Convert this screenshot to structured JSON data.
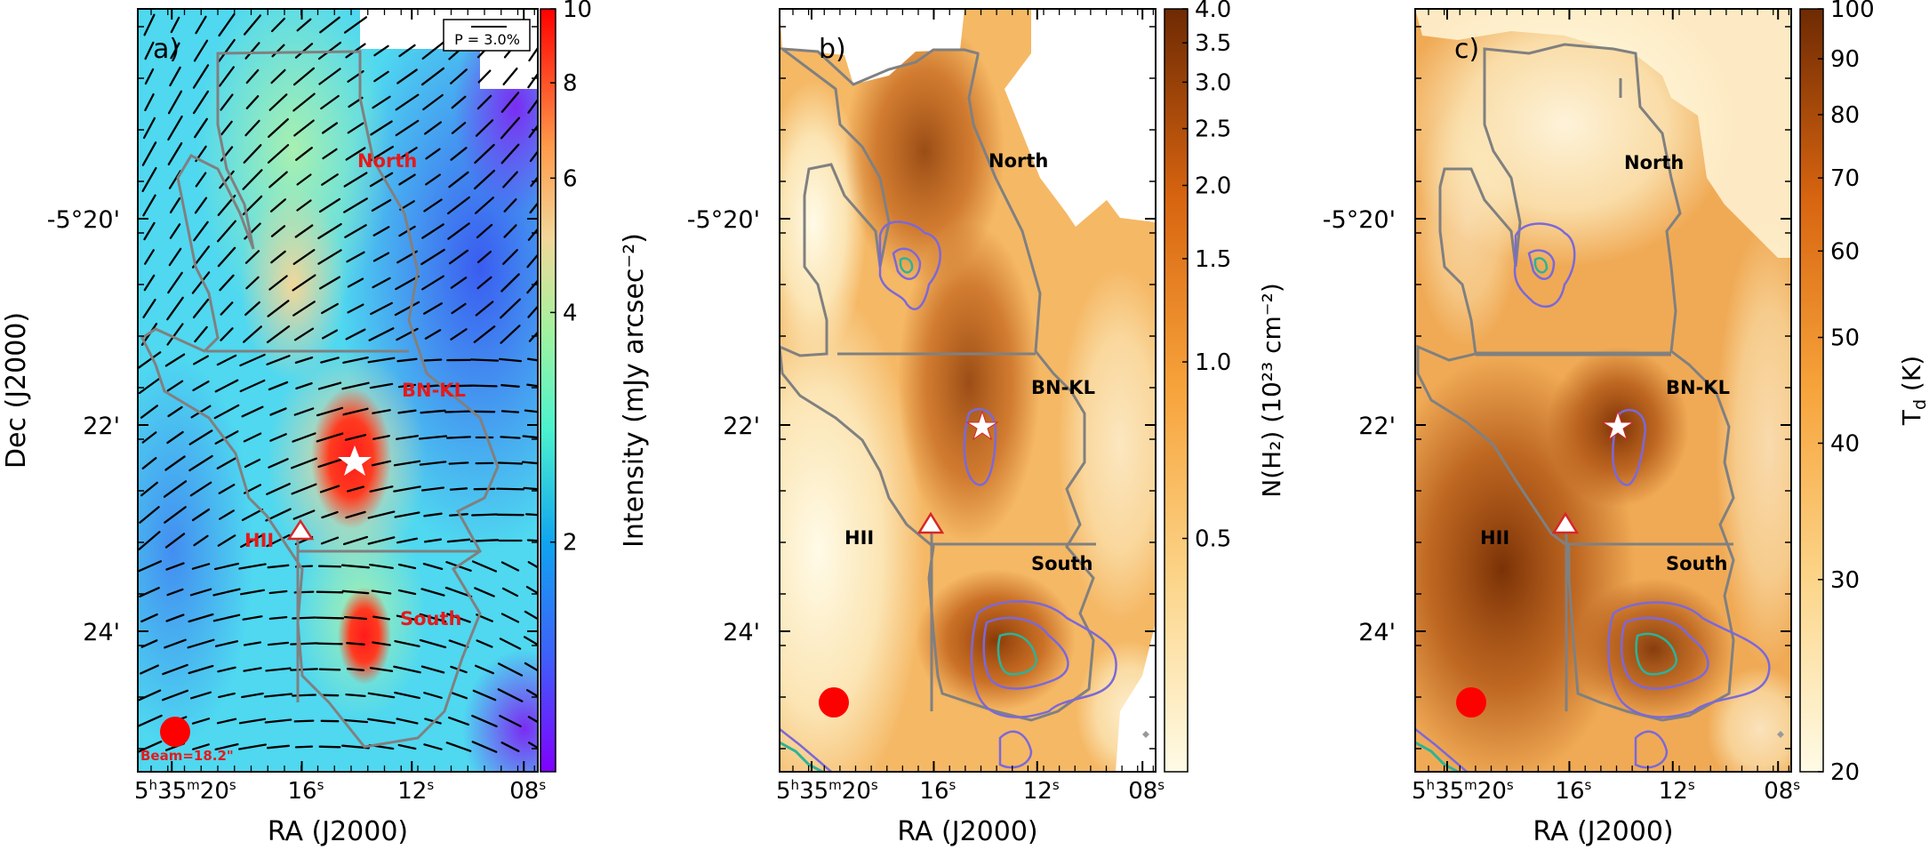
{
  "figure": {
    "y_axis_label": "Dec (J2000)",
    "dec_ticks": [
      "-5°20'",
      "22'",
      "24'"
    ],
    "ra_ticks": [
      "16",
      "12",
      "08"
    ],
    "ra_first_tick": {
      "h": "5",
      "h_sup": "h",
      "m": "35",
      "m_sup": "m",
      "s": "20",
      "s_sup": "s"
    },
    "ra_sec_sup": "s",
    "ra_axis_label": "RA (J2000)"
  },
  "panels": [
    {
      "id": "a",
      "label": "a)",
      "colormap": "rainbow",
      "colorbar": {
        "label": "Intensity (mJy arcsec⁻²)",
        "scale": "log",
        "range": [
          1,
          10
        ],
        "tick_labels": [
          "10",
          "8",
          "6",
          "4",
          "2"
        ],
        "tick_values": [
          10,
          8,
          6,
          4,
          2
        ]
      },
      "scale_bar_label": "P = 3.0%",
      "beam_label": "Beam=18.2\"",
      "region_labels": [
        "North",
        "BN-KL",
        "HII",
        "South"
      ],
      "region_label_color": "#e41a1c"
    },
    {
      "id": "b",
      "label": "b)",
      "colormap": "orange",
      "colorbar": {
        "label": "N(H₂) (10²³ cm⁻²)",
        "scale": "log",
        "range": [
          0.2,
          4.0
        ],
        "tick_labels": [
          "4.0",
          "3.5",
          "3.0",
          "2.5",
          "2.0",
          "1.5",
          "1.0",
          "0.5"
        ],
        "tick_values": [
          4.0,
          3.5,
          3.0,
          2.5,
          2.0,
          1.5,
          1.0,
          0.5
        ]
      },
      "region_labels": [
        "North",
        "BN-KL",
        "HII",
        "South"
      ],
      "region_label_color": "#000000"
    },
    {
      "id": "c",
      "label": "c)",
      "colormap": "orange",
      "colorbar": {
        "label": "Tₔ (K)",
        "label_main": "T",
        "label_sub": "d",
        "label_unit": " (K)",
        "scale": "log",
        "range": [
          20,
          100
        ],
        "tick_labels": [
          "100",
          "90",
          "80",
          "70",
          "60",
          "50",
          "40",
          "30",
          "20"
        ],
        "tick_values": [
          100,
          90,
          80,
          70,
          60,
          50,
          40,
          30,
          20
        ]
      },
      "region_labels": [
        "North",
        "BN-KL",
        "HII",
        "South"
      ],
      "region_label_color": "#000000"
    }
  ],
  "colors": {
    "boundary": "#808080",
    "contour_outer": "#7b68d9",
    "contour_inner": "#2bb39a",
    "beam": "#ff0000",
    "star": "#ffffff",
    "triangle_edge": "#d62728"
  }
}
